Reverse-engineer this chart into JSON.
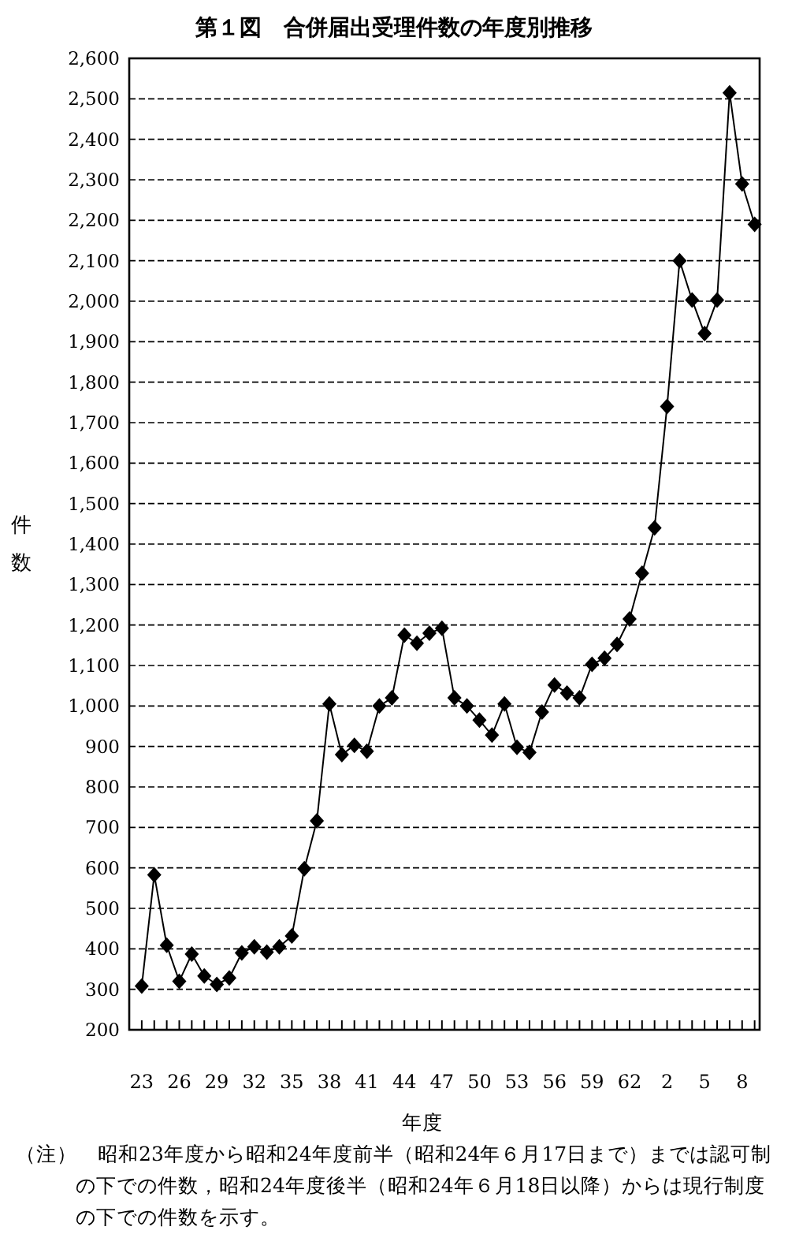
{
  "chart_data": {
    "type": "line",
    "title": "第１図　合併届出受理件数の年度別推移",
    "xlabel": "年度",
    "ylabel": "件数",
    "categories": [
      "23",
      null,
      null,
      "26",
      null,
      null,
      "29",
      null,
      null,
      "32",
      null,
      null,
      "35",
      null,
      null,
      "38",
      null,
      null,
      "41",
      null,
      null,
      "44",
      null,
      null,
      "47",
      null,
      null,
      "50",
      null,
      null,
      "53",
      null,
      null,
      "56",
      null,
      null,
      "59",
      null,
      null,
      "62",
      null,
      null,
      "2",
      null,
      null,
      "5",
      null,
      null,
      "8",
      null
    ],
    "series": [
      {
        "color": "#000000",
        "values": [
          308,
          583,
          409,
          320,
          387,
          333,
          312,
          328,
          390,
          405,
          392,
          405,
          432,
          598,
          716,
          1005,
          880,
          903,
          888,
          1000,
          1020,
          1175,
          1155,
          1180,
          1192,
          1020,
          1000,
          965,
          928,
          1005,
          898,
          885,
          985,
          1052,
          1032,
          1020,
          1103,
          1118,
          1152,
          1215,
          1328,
          1440,
          1740,
          2100,
          2003,
          1920,
          2003,
          2515,
          2290,
          2190
        ]
      }
    ],
    "ylim": [
      200,
      2600
    ],
    "yticks": [
      200,
      300,
      400,
      500,
      600,
      700,
      800,
      900,
      {
        "value": 1000,
        "label": "1,000"
      },
      {
        "value": 1100,
        "label": "1,100"
      },
      {
        "value": 1200,
        "label": "1,200"
      },
      {
        "value": 1300,
        "label": "1,300"
      },
      {
        "value": 1400,
        "label": "1,400"
      },
      {
        "value": 1500,
        "label": "1,500"
      },
      {
        "value": 1600,
        "label": "1,600"
      },
      {
        "value": 1700,
        "label": "1,700"
      },
      {
        "value": 1800,
        "label": "1,800"
      },
      {
        "value": 1900,
        "label": "1,900"
      },
      {
        "value": 2000,
        "label": "2,000"
      },
      {
        "value": 2100,
        "label": "2,100"
      },
      {
        "value": 2200,
        "label": "2,200"
      },
      {
        "value": 2300,
        "label": "2,300"
      },
      {
        "value": 2400,
        "label": "2,400"
      },
      {
        "value": 2500,
        "label": "2,500"
      },
      {
        "value": 2600,
        "label": "2,600"
      }
    ],
    "grid": "y",
    "marker": "diamond",
    "annotations": [
      "（注）　昭和23年度から昭和24年度前半（昭和24年６月17日まで）までは認可制の下での件数，昭和24年度後半（昭和24年６月18日以降）からは現行制度の下での件数を示す。"
    ]
  }
}
